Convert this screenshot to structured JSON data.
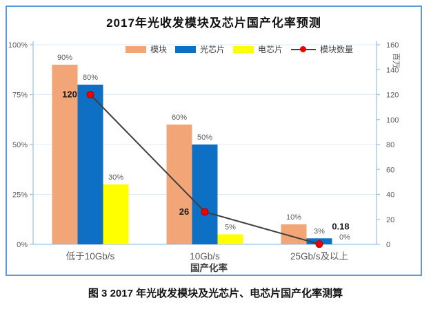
{
  "figure": {
    "title": "2017年光收发模块及芯片国产化率预测",
    "caption": "图 3 2017 年光收发模块及光芯片、电芯片国产化率测算"
  },
  "chart_data": {
    "type": "bar",
    "subtype": "combo-bar-line",
    "title": "2017年光收发模块及芯片国产化率预测",
    "categories": [
      "低于10Gb/s",
      "10Gb/s",
      "25Gb/s及以上"
    ],
    "x_axis_title": "国产化率",
    "left_axis": {
      "min": 0,
      "max": 100,
      "tick_labels": [
        "0%",
        "25%",
        "50%",
        "75%",
        "100%"
      ]
    },
    "right_axis": {
      "min": 0,
      "max": 160,
      "tick_labels": [
        "0",
        "20",
        "40",
        "60",
        "80",
        "100",
        "120",
        "140",
        "160"
      ],
      "title": "百万"
    },
    "series": [
      {
        "id": "module",
        "name": "模块",
        "type": "bar",
        "color": "#F2A577",
        "values": [
          90,
          60,
          10
        ],
        "data_labels": [
          "90%",
          "60%",
          "10%"
        ]
      },
      {
        "id": "optical-chip",
        "name": "光芯片",
        "type": "bar",
        "color": "#0D70C5",
        "values": [
          80,
          50,
          3
        ],
        "data_labels": [
          "80%",
          "50%",
          "3%"
        ]
      },
      {
        "id": "electrical-chip",
        "name": "电芯片",
        "type": "bar",
        "color": "#FFFF00",
        "values": [
          30,
          5,
          0
        ],
        "data_labels": [
          "30%",
          "5%",
          "0%"
        ]
      },
      {
        "id": "module-count",
        "name": "模块数量",
        "type": "line",
        "axis": "right",
        "color": "#3F3F3F",
        "marker_color": "#EE0000",
        "values": [
          120,
          26,
          0.18
        ],
        "data_labels": [
          "120",
          "26",
          "0.18"
        ]
      }
    ],
    "grid": true,
    "legend_position": "top"
  },
  "colors": {
    "frame_border": "#5B9BD5",
    "axis_line": "#9DC3E6",
    "gridline": "#DEEBF7",
    "tick_text": "#595959",
    "bar_label_text": "#595959",
    "line_label_text": "#1A1A1A",
    "category_text": "#595959",
    "x_title_text": "#404040",
    "marker_stroke": "#B30000"
  }
}
